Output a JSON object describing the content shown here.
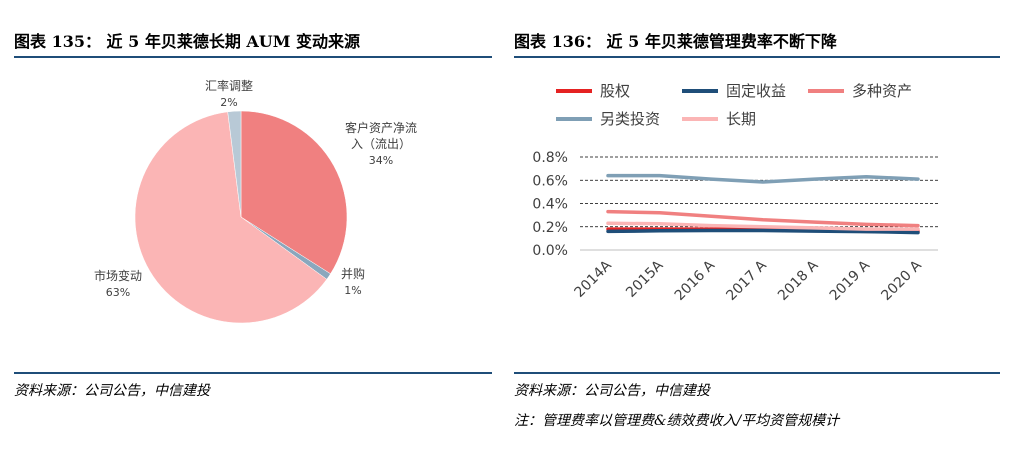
{
  "left": {
    "title": "图表 135： 近 5 年贝莱德长期 AUM 变动来源",
    "source": "资料来源：公司公告，中信建投"
  },
  "right": {
    "title": "图表 136： 近 5 年贝莱德管理费率不断下降",
    "source": "资料来源：公司公告，中信建投",
    "note": "注：管理费率以管理费&绩效费收入/平均资管规模计"
  },
  "chart_data": [
    {
      "type": "pie",
      "title": "近 5 年贝莱德长期 AUM 变动来源",
      "slices": [
        {
          "name": "客户资产净流入（流出）",
          "label_lines": [
            "客户资产净流",
            "入（流出）"
          ],
          "pct_label": "34%",
          "value": 34,
          "color": "#f08080"
        },
        {
          "name": "并购",
          "label_lines": [
            "并购"
          ],
          "pct_label": "1%",
          "value": 1,
          "color": "#8aa7bd"
        },
        {
          "name": "市场变动",
          "label_lines": [
            "市场变动"
          ],
          "pct_label": "63%",
          "value": 63,
          "color": "#fbb5b5"
        },
        {
          "name": "汇率调整",
          "label_lines": [
            "汇率调整"
          ],
          "pct_label": "2%",
          "value": 2,
          "color": "#b8c9d6"
        }
      ]
    },
    {
      "type": "line",
      "title": "近 5 年贝莱德管理费率不断下降",
      "categories": [
        "2014A",
        "2015A",
        "2016 A",
        "2017 A",
        "2018 A",
        "2019 A",
        "2020 A"
      ],
      "ylim": [
        0,
        0.8
      ],
      "yticks": [
        0,
        0.2,
        0.4,
        0.6,
        0.8
      ],
      "ytick_labels": [
        "0.0%",
        "0.2%",
        "0.4%",
        "0.6%",
        "0.8%"
      ],
      "grid": "dashed",
      "series": [
        {
          "name": "股权",
          "color": "#e52222",
          "values": [
            0.18,
            0.18,
            0.18,
            0.18,
            0.17,
            0.16,
            0.16
          ]
        },
        {
          "name": "固定收益",
          "color": "#1f4e79",
          "values": [
            0.16,
            0.165,
            0.168,
            0.168,
            0.163,
            0.158,
            0.15
          ]
        },
        {
          "name": "多种资产",
          "color": "#f08080",
          "values": [
            0.33,
            0.32,
            0.29,
            0.26,
            0.24,
            0.22,
            0.21
          ]
        },
        {
          "name": "另类投资",
          "color": "#7f9fb5",
          "values": [
            0.64,
            0.64,
            0.61,
            0.585,
            0.61,
            0.63,
            0.61
          ]
        },
        {
          "name": "长期",
          "color": "#fbb5b5",
          "values": [
            0.23,
            0.225,
            0.21,
            0.2,
            0.19,
            0.18,
            0.18
          ]
        }
      ]
    }
  ]
}
